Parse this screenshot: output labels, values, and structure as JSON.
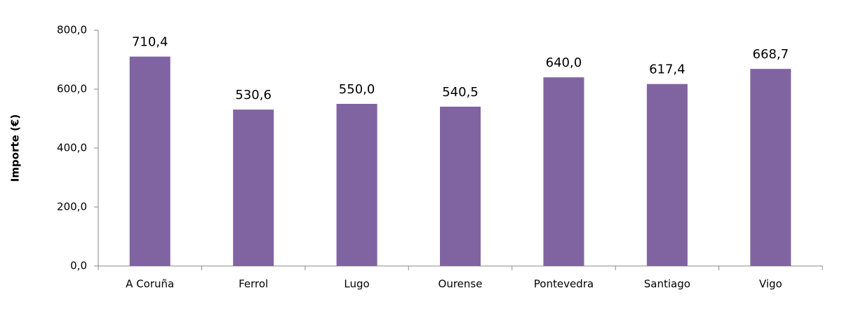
{
  "chart_data": {
    "type": "bar",
    "y_label": "Importe (€)",
    "categories": [
      "A Coruña",
      "Ferrol",
      "Lugo",
      "Ourense",
      "Pontevedra",
      "Santiago",
      "Vigo"
    ],
    "values": [
      710.4,
      530.6,
      550.0,
      540.5,
      640.0,
      617.4,
      668.7
    ],
    "value_labels": [
      "710,4",
      "530,6",
      "550,0",
      "540,5",
      "640,0",
      "617,4",
      "668,7"
    ],
    "color": "#8064a2",
    "ylim": [
      0,
      800
    ],
    "yticks": [
      {
        "value": 0,
        "label": "0,0"
      },
      {
        "value": 200,
        "label": "200,0"
      },
      {
        "value": 400,
        "label": "400,0"
      },
      {
        "value": 600,
        "label": "600,0"
      },
      {
        "value": 800,
        "label": "800,0"
      }
    ],
    "grid": false
  }
}
